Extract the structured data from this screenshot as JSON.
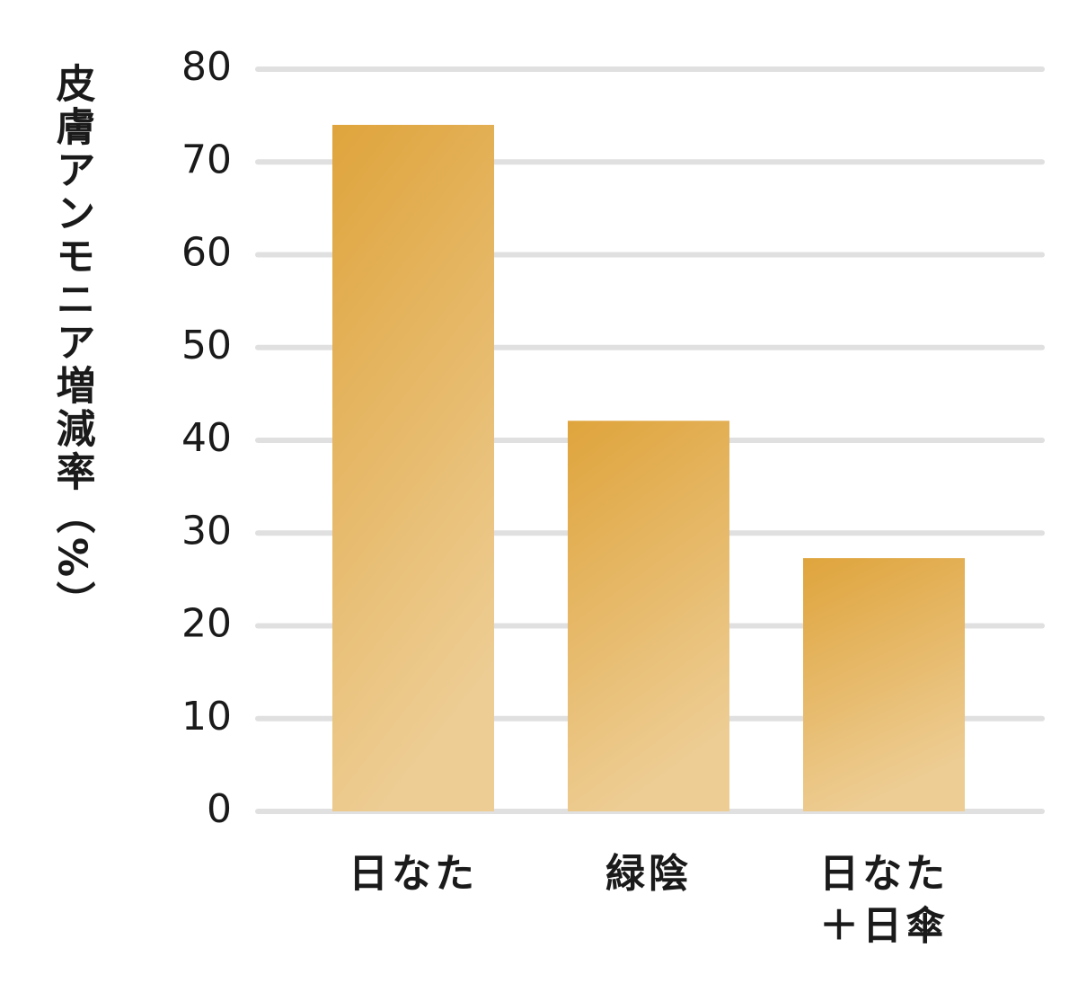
{
  "chart_data": {
    "type": "bar",
    "y_axis_label": "皮膚アンモニア増減率（%）",
    "categories": [
      "日なた",
      "緑陰",
      "日なた\n＋日傘"
    ],
    "values": [
      74,
      42.1,
      27.3
    ],
    "color": "#dfa43c",
    "ylim": [
      0,
      80
    ],
    "yticks": [
      0,
      10,
      20,
      30,
      40,
      50,
      60,
      70,
      80
    ],
    "grid": true
  }
}
